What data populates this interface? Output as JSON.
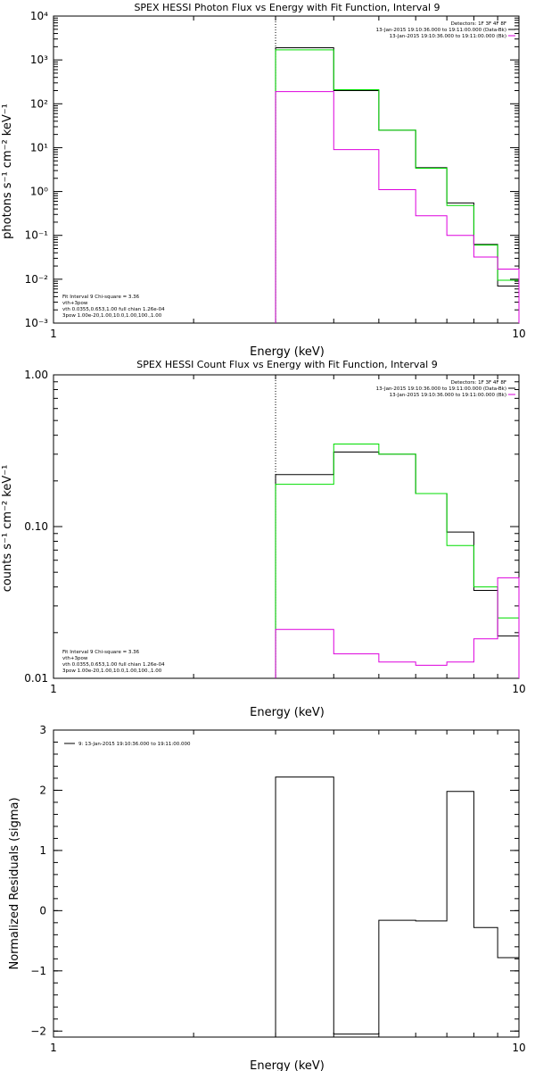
{
  "chart_data": [
    {
      "type": "line",
      "title": "SPEX HESSI Photon Flux vs Energy with Fit Function, Interval 9",
      "xlabel": "Energy (keV)",
      "ylabel": "photons s⁻¹ cm⁻² keV⁻¹",
      "xscale": "log",
      "yscale": "log",
      "xlim": [
        1,
        10
      ],
      "ylim": [
        0.001,
        10000
      ],
      "x_ticks": [
        "1",
        "10"
      ],
      "y_ticks": [
        "10⁻³",
        "10⁻²",
        "10⁻¹",
        "10⁰",
        "10¹",
        "10²",
        "10³",
        "10⁴"
      ],
      "vline_x": 3.0,
      "bin_edges": [
        3.0,
        4.0,
        5.0,
        6.0,
        7.0,
        8.0,
        9.0,
        10.0
      ],
      "series": [
        {
          "color": "#000000",
          "values": [
            1900,
            200,
            25,
            3.5,
            0.55,
            0.062,
            0.007
          ]
        },
        {
          "color": "#00dd00",
          "values": [
            1700,
            210,
            25,
            3.4,
            0.48,
            0.06,
            0.0095
          ]
        },
        {
          "color": "#dd00dd",
          "values": [
            190,
            9,
            1.1,
            0.28,
            0.1,
            0.032,
            0.017
          ]
        }
      ],
      "legend_top": {
        "position": "top-right",
        "lines": [
          {
            "text": "Detectors: 1F 3F 4F 8F",
            "color": ""
          },
          {
            "text": "13-Jan-2015 19:10:36.000 to 19:11:00.000 (Data-Bk)",
            "color": "#000000"
          },
          {
            "text": "13-Jan-2015 19:10:36.000 to 19:11:00.000 (Bk)",
            "color": "#dd00dd"
          }
        ]
      },
      "legend_bottom": {
        "position": "bottom-left",
        "lines": [
          {
            "text": "Fit Interval 9   Chi-square = 3.36",
            "color": ""
          },
          {
            "text": "vth+3pow",
            "color": "#dd0000"
          },
          {
            "text": "vth 0.0355,0.653,1.00  full chian 1.26e-04",
            "color": "#00dd00"
          },
          {
            "text": "3pow 1.00e-20,1.00,10.0,1.00,100.,1.00",
            "color": "#dddd00"
          }
        ]
      }
    },
    {
      "type": "line",
      "title": "SPEX HESSI Count Flux vs Energy with Fit Function, Interval 9",
      "xlabel": "Energy (keV)",
      "ylabel": "counts s⁻¹ cm⁻² keV⁻¹",
      "xscale": "log",
      "yscale": "log",
      "xlim": [
        1,
        10
      ],
      "ylim": [
        0.01,
        1.0
      ],
      "x_ticks": [
        "1",
        "10"
      ],
      "y_ticks": [
        "0.01",
        "0.10",
        "1.00"
      ],
      "vline_x": 3.0,
      "bin_edges": [
        3.0,
        4.0,
        5.0,
        6.0,
        7.0,
        8.0,
        9.0,
        10.0
      ],
      "series": [
        {
          "color": "#000000",
          "values": [
            0.22,
            0.31,
            0.3,
            0.165,
            0.092,
            0.038,
            0.019
          ]
        },
        {
          "color": "#00dd00",
          "values": [
            0.19,
            0.35,
            0.3,
            0.165,
            0.075,
            0.04,
            0.025
          ]
        },
        {
          "color": "#dd00dd",
          "values": [
            0.021,
            0.0145,
            0.0128,
            0.0122,
            0.0128,
            0.0182,
            0.046
          ]
        }
      ],
      "legend_top": {
        "position": "top-right",
        "lines": [
          {
            "text": "Detectors: 1F 3F 4F 8F",
            "color": ""
          },
          {
            "text": "13-Jan-2015 19:10:36.000 to 19:11:00.000 (Data-Bk)",
            "color": "#000000"
          },
          {
            "text": "13-Jan-2015 19:10:36.000 to 19:11:00.000 (Bk)",
            "color": "#dd00dd"
          }
        ]
      },
      "legend_bottom": {
        "position": "bottom-left",
        "lines": [
          {
            "text": "Fit Interval 9   Chi-square = 3.36",
            "color": ""
          },
          {
            "text": "vth+3pow",
            "color": "#dd0000"
          },
          {
            "text": "vth 0.0355,0.653,1.00  full chian 1.26e-04",
            "color": "#00dd00"
          },
          {
            "text": "3pow 1.00e-20,1.00,10.0,1.00,100.,1.00",
            "color": "#dddd00"
          }
        ]
      }
    },
    {
      "type": "line",
      "title": "",
      "xlabel": "Energy (keV)",
      "ylabel": "Normalized Residuals (sigma)",
      "xscale": "log",
      "yscale": "linear",
      "xlim": [
        1,
        10
      ],
      "ylim": [
        -2.1,
        3.0
      ],
      "x_ticks": [
        "1",
        "10"
      ],
      "y_ticks": [
        "−2",
        "−1",
        "0",
        "1",
        "2",
        "3"
      ],
      "y_tick_values": [
        -2,
        -1,
        0,
        1,
        2,
        3
      ],
      "bin_edges": [
        3.0,
        4.0,
        5.0,
        6.0,
        7.0,
        8.0,
        9.0,
        10.0
      ],
      "series": [
        {
          "color": "#000000",
          "values": [
            2.22,
            -2.05,
            -0.16,
            -0.17,
            1.98,
            -0.28,
            -0.78
          ]
        }
      ],
      "legend_top": {
        "position": "top-left",
        "lines": [
          {
            "text": "9: 13-Jan-2015 19:10:36.000 to 19:11:00.000",
            "color": "#000000"
          }
        ]
      }
    }
  ]
}
